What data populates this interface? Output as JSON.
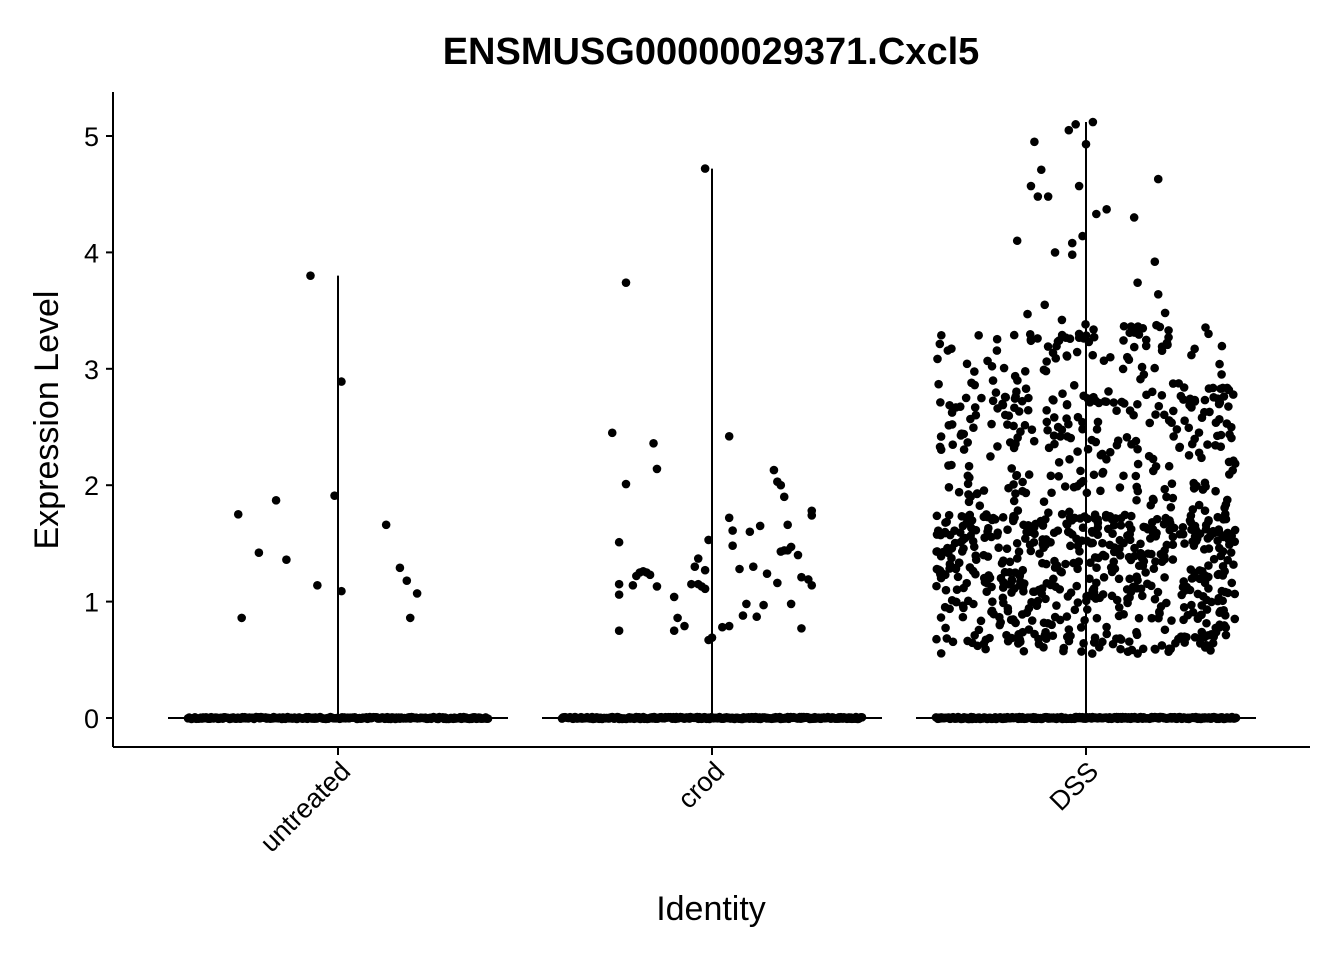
{
  "chart_data": {
    "type": "scatter",
    "subtype": "violin-jitter",
    "title": "ENSMUSG00000029371.Cxcl5",
    "xlabel": "Identity",
    "ylabel": "Expression Level",
    "ylim": [
      -0.25,
      5.35
    ],
    "yticks": [
      0,
      1,
      2,
      3,
      4,
      5
    ],
    "grid": false,
    "legend": "none",
    "point_color": "#000000",
    "categories": [
      "untreated",
      "crod",
      "DSS"
    ],
    "groups": [
      {
        "name": "untreated",
        "max": 3.8,
        "zero_count": 260,
        "nonzero": [
          [
            -0.28,
            0.86
          ],
          [
            -0.29,
            1.75
          ],
          [
            -0.23,
            1.42
          ],
          [
            -0.18,
            1.87
          ],
          [
            -0.15,
            1.36
          ],
          [
            -0.08,
            3.8
          ],
          [
            -0.06,
            1.14
          ],
          [
            -0.01,
            1.91
          ],
          [
            0.01,
            1.09
          ],
          [
            0.01,
            2.89
          ],
          [
            0.14,
            1.66
          ],
          [
            0.18,
            1.29
          ],
          [
            0.2,
            1.18
          ],
          [
            0.21,
            0.86
          ],
          [
            0.23,
            1.07
          ]
        ]
      },
      {
        "name": "crod",
        "max": 4.72,
        "zero_count": 300,
        "nonzero": [
          [
            -0.29,
            2.45
          ],
          [
            -0.27,
            1.15
          ],
          [
            -0.27,
            1.06
          ],
          [
            -0.27,
            1.51
          ],
          [
            -0.27,
            0.75
          ],
          [
            -0.25,
            3.74
          ],
          [
            -0.25,
            2.01
          ],
          [
            -0.23,
            1.14
          ],
          [
            -0.22,
            1.22
          ],
          [
            -0.21,
            1.25
          ],
          [
            -0.2,
            1.26
          ],
          [
            -0.19,
            1.25
          ],
          [
            -0.18,
            1.23
          ],
          [
            -0.17,
            2.36
          ],
          [
            -0.16,
            2.14
          ],
          [
            -0.16,
            1.13
          ],
          [
            -0.11,
            0.75
          ],
          [
            -0.11,
            1.04
          ],
          [
            -0.1,
            0.86
          ],
          [
            -0.08,
            0.79
          ],
          [
            -0.06,
            1.15
          ],
          [
            -0.05,
            1.3
          ],
          [
            -0.04,
            1.15
          ],
          [
            -0.04,
            1.37
          ],
          [
            -0.03,
            1.13
          ],
          [
            -0.02,
            1.27
          ],
          [
            -0.02,
            1.11
          ],
          [
            -0.02,
            4.72
          ],
          [
            -0.01,
            1.53
          ],
          [
            -0.01,
            0.67
          ],
          [
            0.0,
            0.69
          ],
          [
            0.03,
            0.78
          ],
          [
            0.05,
            1.72
          ],
          [
            0.05,
            2.42
          ],
          [
            0.05,
            0.79
          ],
          [
            0.06,
            1.61
          ],
          [
            0.06,
            1.48
          ],
          [
            0.08,
            1.28
          ],
          [
            0.09,
            0.88
          ],
          [
            0.1,
            0.98
          ],
          [
            0.11,
            1.6
          ],
          [
            0.12,
            1.3
          ],
          [
            0.13,
            0.87
          ],
          [
            0.14,
            1.65
          ],
          [
            0.15,
            0.97
          ],
          [
            0.16,
            1.24
          ],
          [
            0.18,
            2.13
          ],
          [
            0.19,
            2.03
          ],
          [
            0.19,
            1.16
          ],
          [
            0.2,
            2.0
          ],
          [
            0.2,
            1.43
          ],
          [
            0.21,
            1.9
          ],
          [
            0.21,
            1.44
          ],
          [
            0.22,
            1.44
          ],
          [
            0.22,
            1.66
          ],
          [
            0.23,
            1.47
          ],
          [
            0.23,
            0.98
          ],
          [
            0.25,
            1.4
          ],
          [
            0.26,
            0.77
          ],
          [
            0.26,
            1.21
          ],
          [
            0.28,
            1.19
          ],
          [
            0.29,
            1.14
          ],
          [
            0.29,
            1.74
          ],
          [
            0.29,
            1.78
          ]
        ]
      },
      {
        "name": "DSS",
        "max": 5.12,
        "zero_count": 300,
        "nonzero_count": 900,
        "nonzero_range": [
          0.46,
          5.12
        ],
        "highlights": [
          [
            -0.2,
            4.1
          ],
          [
            -0.17,
            3.47
          ],
          [
            -0.16,
            4.57
          ],
          [
            -0.15,
            4.95
          ],
          [
            -0.14,
            4.48
          ],
          [
            -0.13,
            4.71
          ],
          [
            -0.12,
            3.55
          ],
          [
            -0.11,
            4.48
          ],
          [
            -0.09,
            4.0
          ],
          [
            -0.07,
            3.42
          ],
          [
            -0.05,
            5.05
          ],
          [
            -0.04,
            3.98
          ],
          [
            -0.04,
            4.08
          ],
          [
            -0.03,
            5.1
          ],
          [
            -0.02,
            3.3
          ],
          [
            0.0,
            4.93
          ],
          [
            0.02,
            5.12
          ],
          [
            0.03,
            4.33
          ],
          [
            -0.02,
            4.57
          ],
          [
            -0.01,
            4.14
          ],
          [
            0.06,
            4.37
          ],
          [
            0.14,
            4.3
          ],
          [
            0.15,
            3.74
          ],
          [
            0.2,
            3.92
          ],
          [
            0.21,
            4.63
          ],
          [
            0.21,
            3.64
          ],
          [
            0.23,
            3.48
          ],
          [
            0.24,
            3.33
          ],
          [
            0.24,
            3.27
          ],
          [
            0.12,
            3.1
          ]
        ]
      }
    ]
  }
}
